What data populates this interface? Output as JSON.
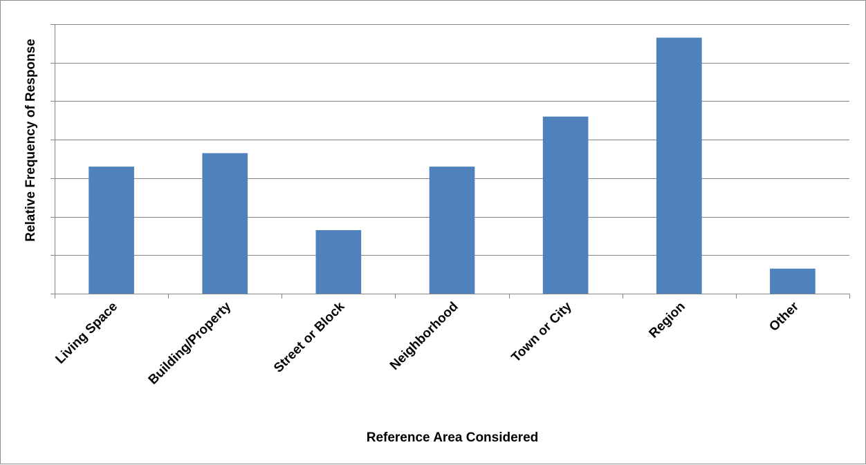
{
  "chart_data": {
    "type": "bar",
    "title": "",
    "xlabel": "Reference Area Considered",
    "ylabel": "Relative Frequency of Response",
    "categories": [
      "Living Space",
      "Building/Property",
      "Street or Block",
      "Neighborhood",
      "Town or City",
      "Region",
      "Other"
    ],
    "series": [
      {
        "values": [
          3.3,
          3.65,
          1.65,
          3.3,
          4.6,
          6.65,
          0.65
        ]
      }
    ],
    "ylim": [
      0,
      7
    ],
    "y_tick_labels_shown": false,
    "grid": true,
    "legend": "none",
    "colors": {
      "bar": "#4f81bd",
      "grid": "#868686",
      "axis": "#868686"
    }
  }
}
